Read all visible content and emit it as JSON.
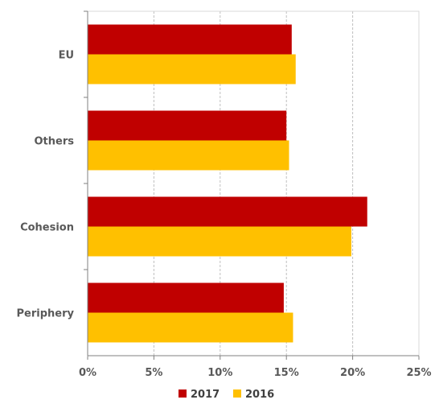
{
  "chart_data": {
    "type": "bar",
    "orientation": "horizontal",
    "categories": [
      "EU",
      "Others",
      "Cohesion",
      "Periphery"
    ],
    "series": [
      {
        "name": "2017",
        "color": "#C00000",
        "values": [
          0.154,
          0.15,
          0.211,
          0.148
        ]
      },
      {
        "name": "2016",
        "color": "#FFC000",
        "values": [
          0.157,
          0.152,
          0.199,
          0.155
        ]
      }
    ],
    "xlim": [
      0,
      0.25
    ],
    "x_ticks": [
      {
        "value": 0,
        "label": "0%"
      },
      {
        "value": 0.05,
        "label": "5%"
      },
      {
        "value": 0.1,
        "label": "10%"
      },
      {
        "value": 0.15,
        "label": "15%"
      },
      {
        "value": 0.2,
        "label": "20%"
      },
      {
        "value": 0.25,
        "label": "25%"
      }
    ],
    "grid": "vertical-dashed",
    "legend_position": "bottom",
    "title": "",
    "xlabel": "",
    "ylabel": ""
  }
}
